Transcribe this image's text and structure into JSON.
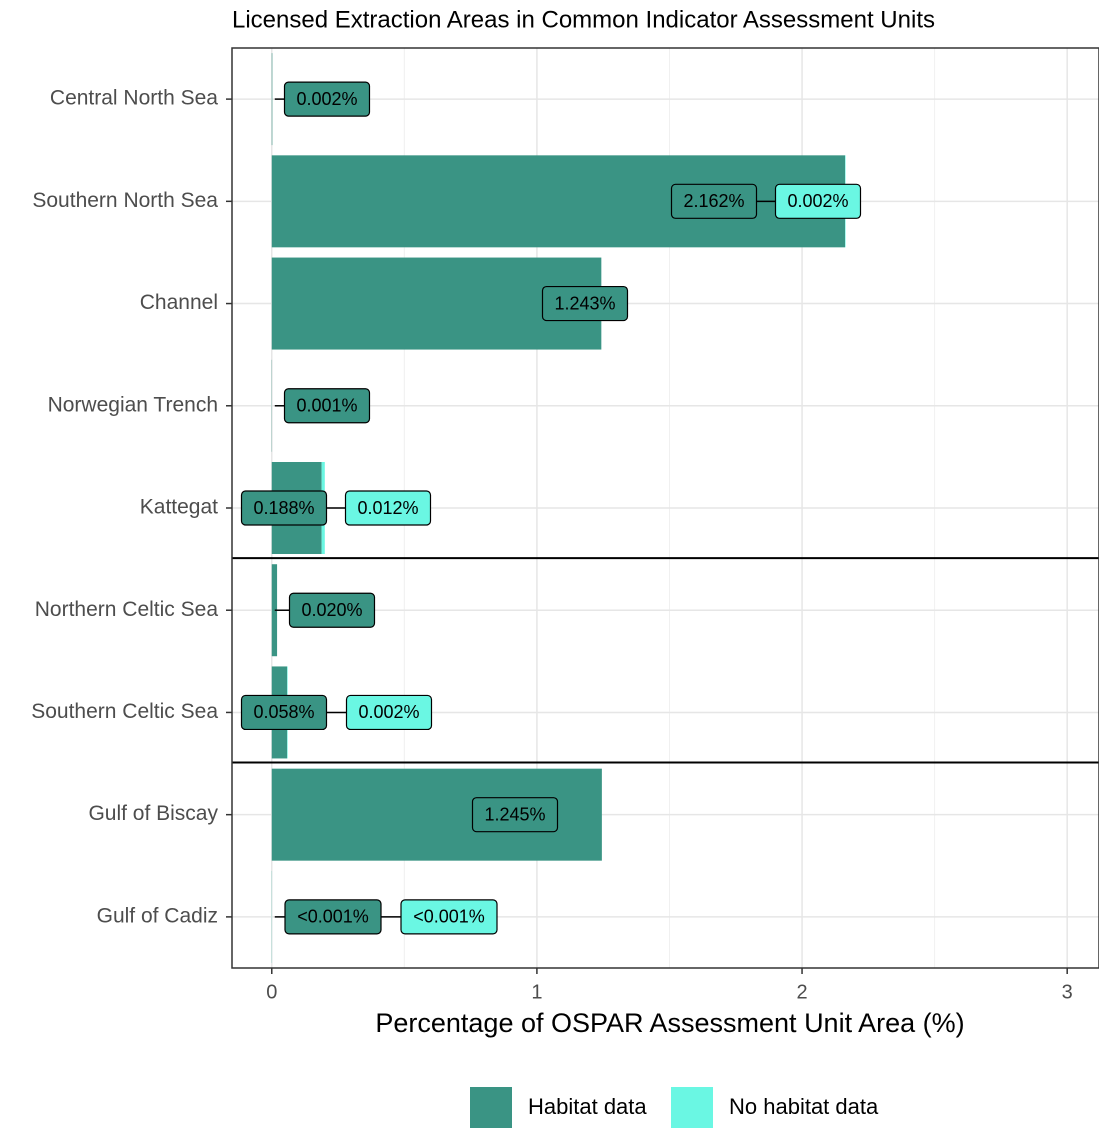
{
  "chart_data": {
    "type": "stacked_barh",
    "title": "Licensed Extraction Areas in Common Indicator Assessment Units",
    "x_label": "Percentage of OSPAR Assessment Unit Area (%)",
    "categories": [
      "Central North Sea",
      "Southern North Sea",
      "Channel",
      "Norwegian Trench",
      "Kattegat",
      "Northern Celtic Sea",
      "Southern Celtic Sea",
      "Gulf of Biscay",
      "Gulf of Cadiz"
    ],
    "series": [
      {
        "name": "Habitat data",
        "color": "#3a9484",
        "values": [
          0.002,
          2.162,
          1.243,
          0.001,
          0.188,
          0.02,
          0.058,
          1.245,
          0.0005
        ],
        "value_labels": [
          "0.002%",
          "2.162%",
          "1.243%",
          "0.001%",
          "0.188%",
          "0.020%",
          "0.058%",
          "1.245%",
          "<0.001%"
        ]
      },
      {
        "name": "No habitat data",
        "color": "#6af7e3",
        "values": [
          null,
          0.002,
          null,
          null,
          0.012,
          null,
          0.002,
          null,
          0.0005
        ],
        "value_labels": [
          null,
          "0.002%",
          null,
          null,
          "0.012%",
          null,
          "0.002%",
          null,
          "<0.001%"
        ]
      }
    ],
    "xlim": [
      -0.15,
      3.12
    ],
    "xticks": [
      0,
      1,
      2,
      3
    ],
    "x_minor_ticks": [
      0.5,
      1.5,
      2.5
    ],
    "grid": true,
    "legend": "bottom"
  }
}
